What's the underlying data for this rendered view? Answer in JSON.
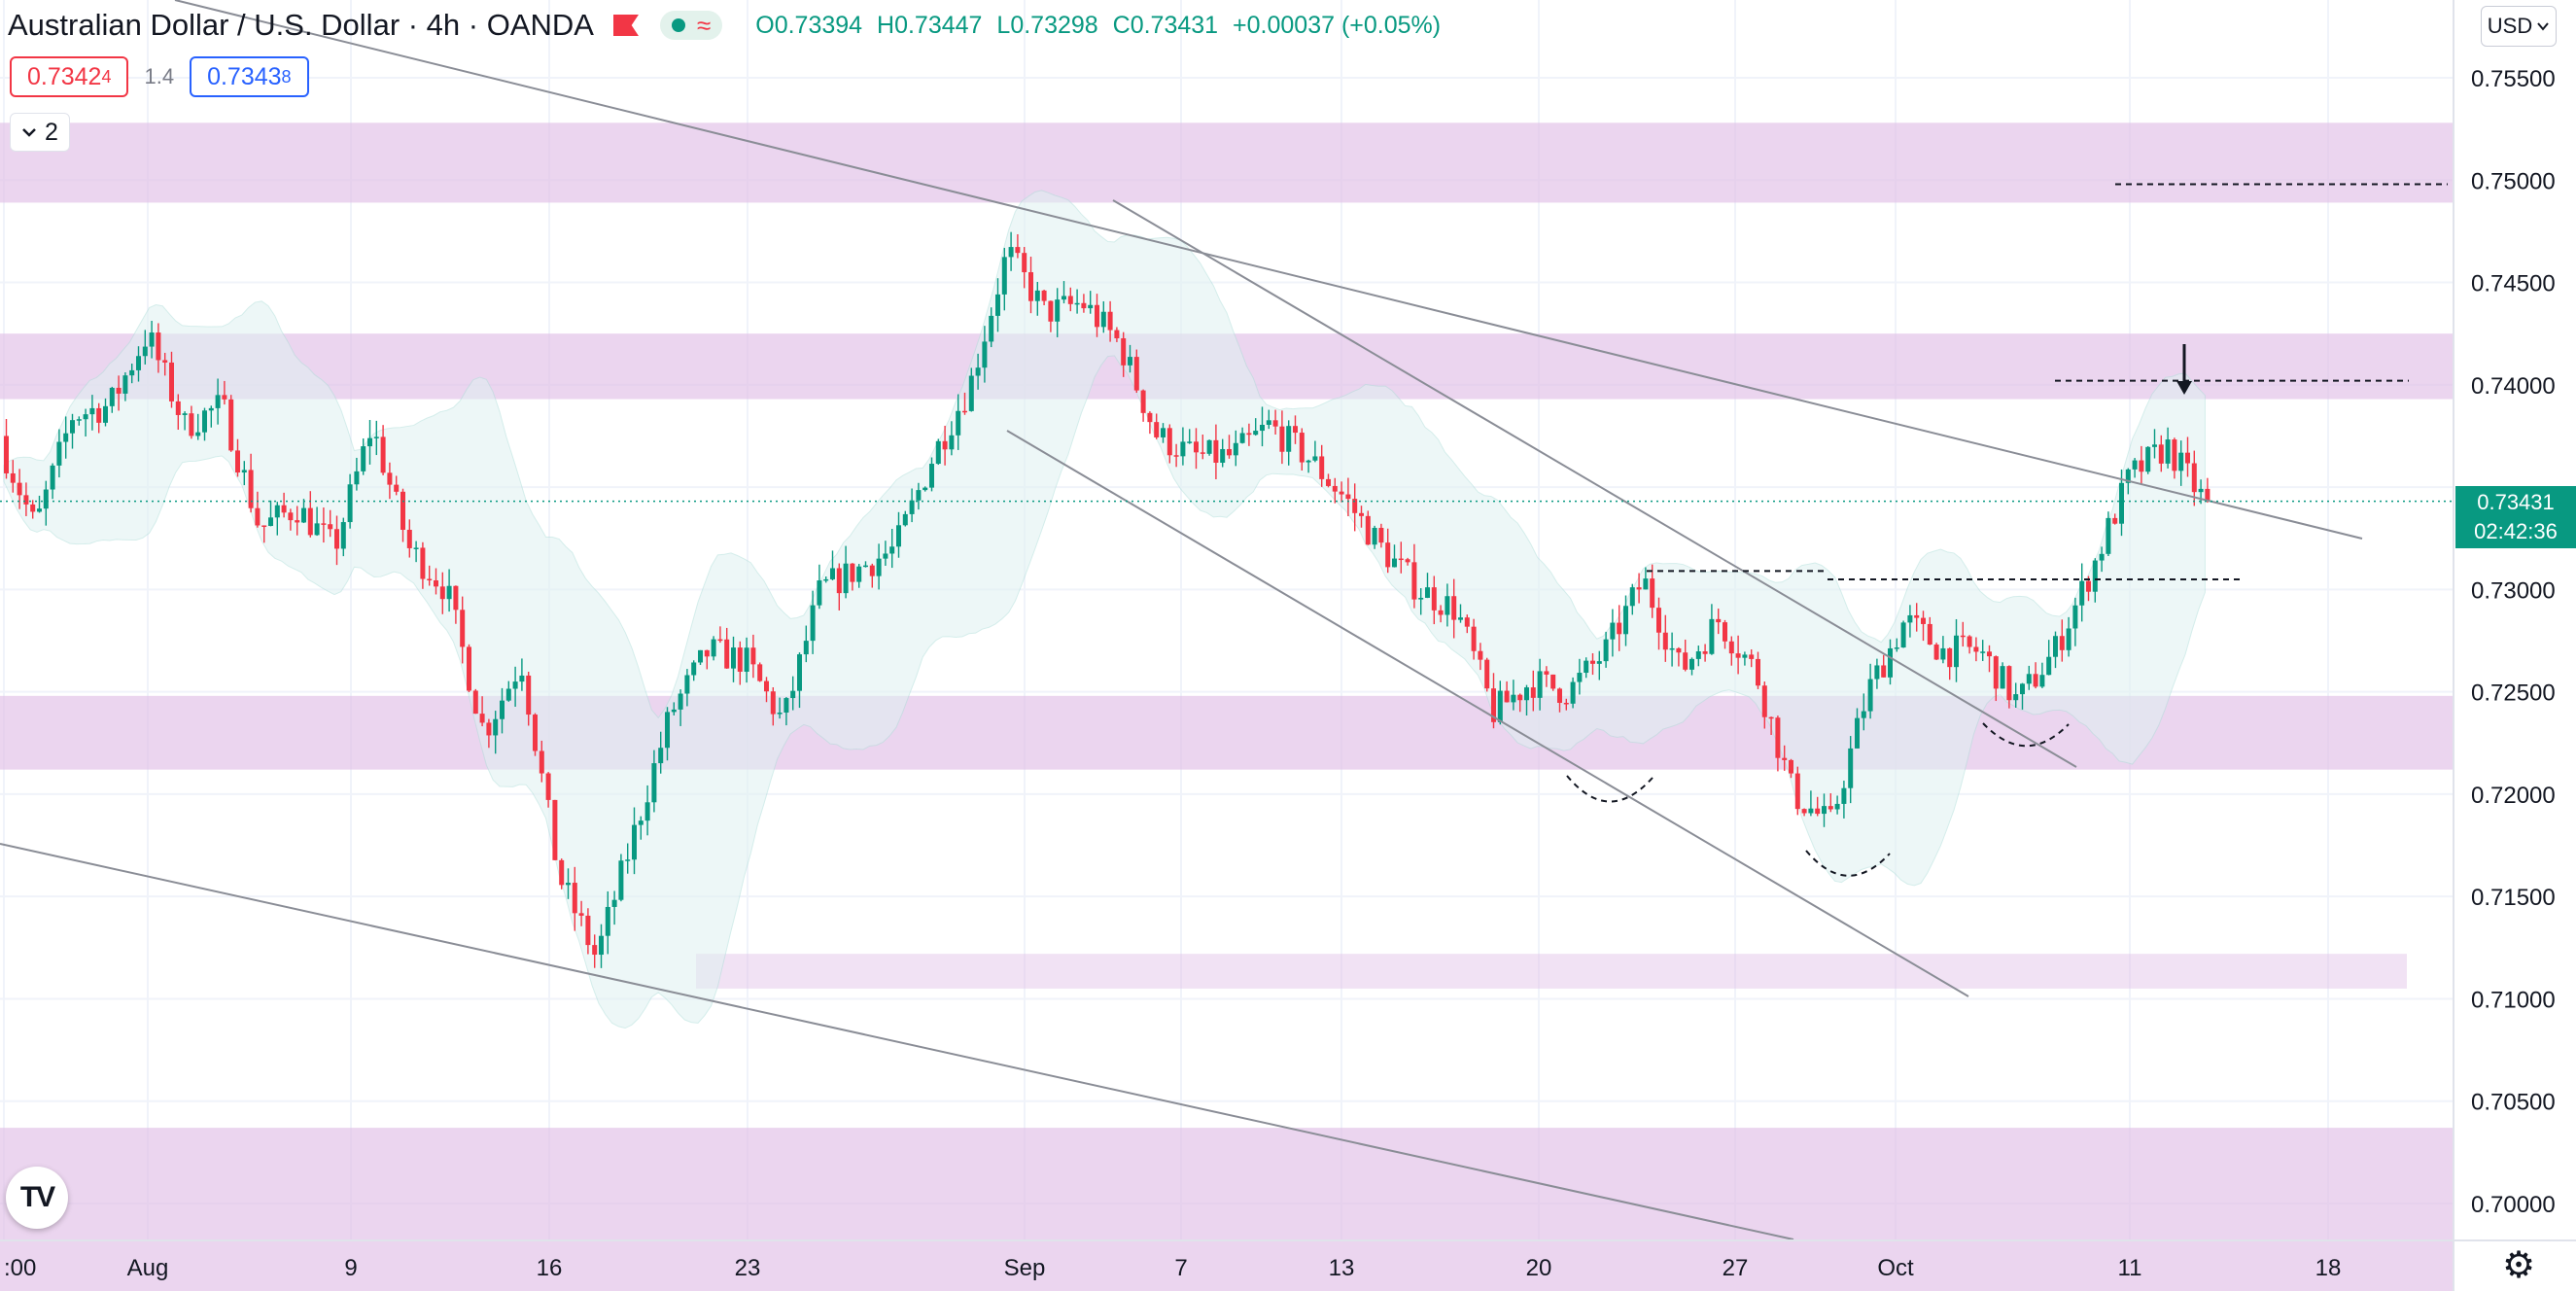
{
  "header": {
    "title": "Australian Dollar / U.S. Dollar · 4h · OANDA",
    "open": "O0.73394",
    "high": "H0.73447",
    "low": "L0.73298",
    "close": "C0.73431",
    "change": "+0.00037 (+0.05%)",
    "wave_glyph": "≈"
  },
  "prices": {
    "bid_main": "0.7342",
    "bid_small": "4",
    "spread": "1.4",
    "ask_main": "0.7343",
    "ask_small": "8"
  },
  "toolbar": {
    "collapse_count": "2",
    "currency": "USD"
  },
  "last_price": {
    "value": "0.73431",
    "countdown": "02:42:36"
  },
  "logo": {
    "text": "TV"
  },
  "colors": {
    "up": "#089981",
    "down": "#f23645",
    "zone": "#e1bee7",
    "band_fill": "#e0f2f1",
    "line": "#787b86",
    "accent_blue": "#2962ff"
  },
  "chart_data": {
    "type": "candlestick",
    "title": "Australian Dollar / U.S. Dollar · 4h · OANDA",
    "y_axis": {
      "range": [
        0.6975,
        0.7585
      ],
      "ticks": [
        "0.75500",
        "0.75000",
        "0.74500",
        "0.74000",
        "0.73500",
        "0.73000",
        "0.72500",
        "0.72000",
        "0.71500",
        "0.71000",
        "0.70500",
        "0.70000"
      ]
    },
    "x_axis": {
      "ticks": [
        ":00",
        "Aug",
        "9",
        "16",
        "23",
        "Sep",
        "7",
        "13",
        "20",
        "27",
        "Oct",
        "11",
        "18"
      ]
    },
    "grid": true,
    "last_price": 0.73431,
    "price_path": [
      [
        "Jul 29",
        0.7375
      ],
      [
        "Jul 30",
        0.733
      ],
      [
        "Aug 2",
        0.7385
      ],
      [
        "Aug 4",
        0.739
      ],
      [
        "Aug 6",
        0.7425
      ],
      [
        "Aug 7",
        0.738
      ],
      [
        "Aug 9",
        0.739
      ],
      [
        "Aug 10",
        0.733
      ],
      [
        "Aug 11",
        0.734
      ],
      [
        "Aug 12",
        0.732
      ],
      [
        "Aug 13",
        0.738
      ],
      [
        "Aug 16",
        0.732
      ],
      [
        "Aug 17",
        0.73
      ],
      [
        "Aug 18",
        0.723
      ],
      [
        "Aug 19",
        0.7265
      ],
      [
        "Aug 20",
        0.716
      ],
      [
        "Aug 21",
        0.712
      ],
      [
        "Aug 23",
        0.718
      ],
      [
        "Aug 24",
        0.724
      ],
      [
        "Aug 25",
        0.727
      ],
      [
        "Aug 26",
        0.7265
      ],
      [
        "Aug 27",
        0.7235
      ],
      [
        "Aug 30",
        0.73
      ],
      [
        "Aug 31",
        0.731
      ],
      [
        "Sep 1",
        0.732
      ],
      [
        "Sep 2",
        0.7365
      ],
      [
        "Sep 3",
        0.74
      ],
      [
        "Sep 4",
        0.7465
      ],
      [
        "Sep 5",
        0.7435
      ],
      [
        "Sep 6",
        0.744
      ],
      [
        "Sep 7",
        0.742
      ],
      [
        "Sep 8",
        0.7375
      ],
      [
        "Sep 9",
        0.7365
      ],
      [
        "Sep 10",
        0.7365
      ],
      [
        "Sep 13",
        0.738
      ],
      [
        "Sep 14",
        0.7365
      ],
      [
        "Sep 15",
        0.7345
      ],
      [
        "Sep 16",
        0.732
      ],
      [
        "Sep 17",
        0.73
      ],
      [
        "Sep 18",
        0.729
      ],
      [
        "Sep 20",
        0.724
      ],
      [
        "Sep 21",
        0.7255
      ],
      [
        "Sep 22",
        0.725
      ],
      [
        "Sep 23",
        0.727
      ],
      [
        "Sep 24",
        0.7305
      ],
      [
        "Sep 25",
        0.726
      ],
      [
        "Sep 27",
        0.7285
      ],
      [
        "Sep 28",
        0.726
      ],
      [
        "Sep 29",
        0.72
      ],
      [
        "Sep 30",
        0.7185
      ],
      [
        "Oct 1",
        0.725
      ],
      [
        "Oct 4",
        0.7285
      ],
      [
        "Oct 5",
        0.727
      ],
      [
        "Oct 6",
        0.727
      ],
      [
        "Oct 7",
        0.7245
      ],
      [
        "Oct 8",
        0.727
      ],
      [
        "Oct 11",
        0.731
      ],
      [
        "Oct 12",
        0.7355
      ],
      [
        "Oct 13",
        0.737
      ],
      [
        "Oct 14",
        0.7343
      ]
    ],
    "zones": [
      {
        "from": 0.7489,
        "to": 0.7528
      },
      {
        "from": 0.7393,
        "to": 0.7425
      },
      {
        "from": 0.7212,
        "to": 0.7248
      },
      {
        "from": 0.7105,
        "to": 0.7122
      },
      {
        "from": 0.6948,
        "to": 0.7037
      }
    ],
    "horizontal_levels": [
      0.7498,
      0.7402,
      0.7309,
      0.7304
    ],
    "annotations": [
      "down-arrow near 0.7400 on Oct 13"
    ]
  }
}
